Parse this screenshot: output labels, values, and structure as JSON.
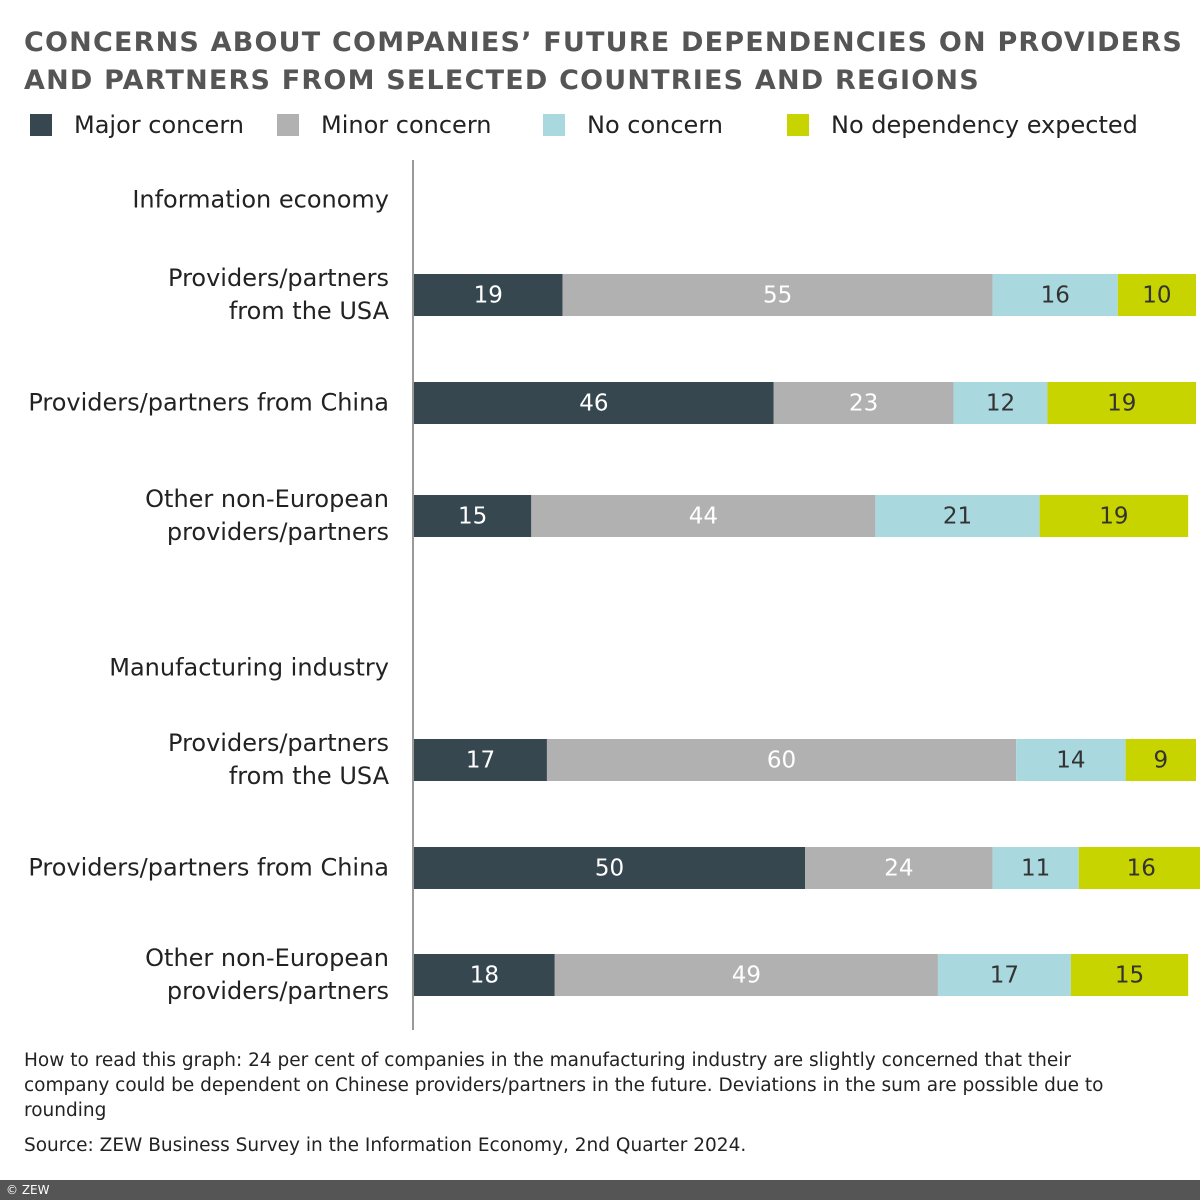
{
  "chart_data": {
    "type": "stacked_barh",
    "title": "CONCERNS ABOUT COMPANIES’ FUTURE DEPENDENCIES ON PROVIDERS AND PARTNERS FROM SELECTED COUNTRIES AND REGIONS",
    "categories": [
      "Information economy",
      "Providers/partners\nfrom the USA",
      "Providers/partners from China",
      "Other non-European\nproviders/partners",
      "Manufacturing industry",
      "Providers/partners\nfrom the USA",
      "Providers/partners from China",
      "Other non-European\nproviders/partners"
    ],
    "series": [
      {
        "name": "Major concern",
        "color": "#37474f",
        "values": [
          null,
          19,
          46,
          15,
          null,
          17,
          50,
          18
        ]
      },
      {
        "name": "Minor concern",
        "color": "#b2b1b2",
        "values": [
          null,
          55,
          23,
          44,
          null,
          60,
          24,
          49
        ]
      },
      {
        "name": "No concern",
        "color": "#a9d8df",
        "values": [
          null,
          16,
          12,
          21,
          null,
          14,
          11,
          17
        ]
      },
      {
        "name": "No dependency expected",
        "color": "#c7d400",
        "values": [
          null,
          10,
          19,
          19,
          null,
          9,
          16,
          15
        ]
      }
    ],
    "xlim": [
      0,
      100
    ],
    "note": "How to read this graph: 24 per cent of companies in the manufacturing industry are slightly concerned that their company could be dependent on Chinese providers/partners in the future. Deviations in the sum are possible due to rounding",
    "source": "Source: ZEW Business Survey in the Information Economy, 2nd Quarter 2024.",
    "copyright": "© ZEW"
  }
}
